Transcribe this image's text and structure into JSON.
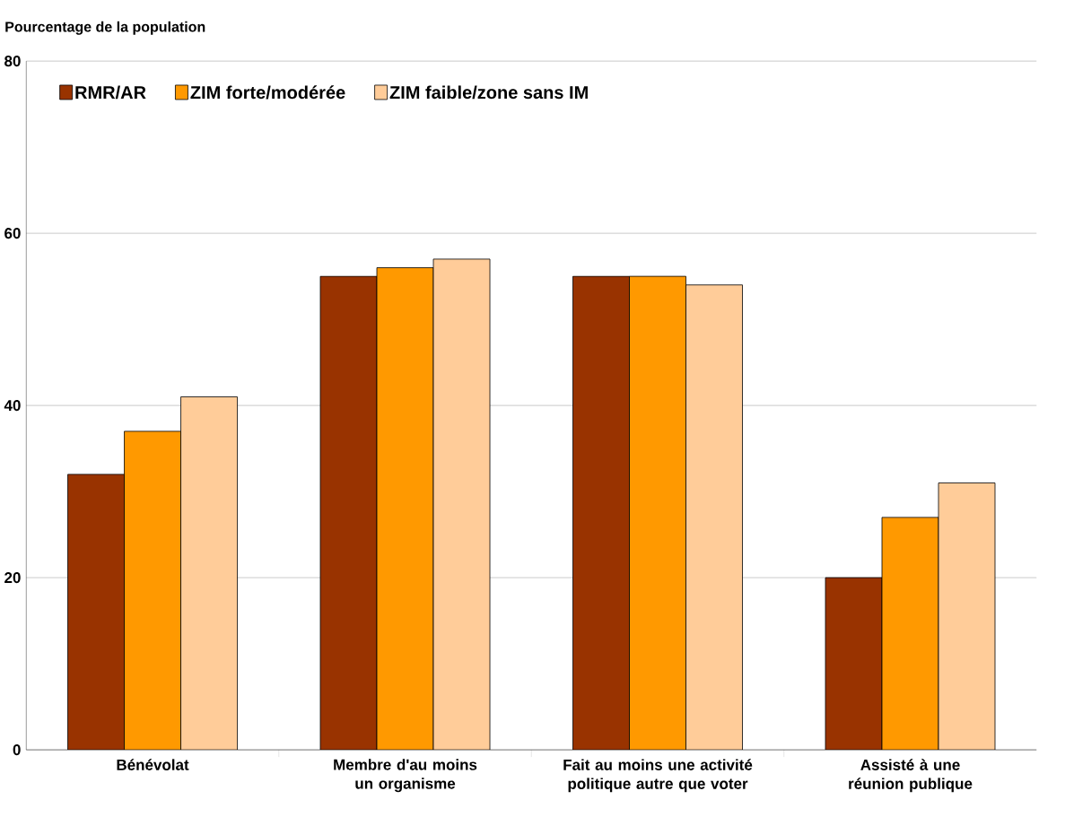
{
  "chart_data": {
    "type": "bar",
    "ylabel": "Pourcentage de la population",
    "categories": [
      "Bénévolat",
      "Membre d'au moins un organisme",
      "Fait au moins une activité politique autre que voter",
      "Assisté à une réunion publique"
    ],
    "series": [
      {
        "name": "RMR/AR",
        "color": "#993300",
        "values": [
          32,
          55,
          55,
          20
        ]
      },
      {
        "name": "ZIM forte/modérée",
        "color": "#ff9900",
        "values": [
          37,
          56,
          55,
          27
        ]
      },
      {
        "name": "ZIM faible/zone sans IM",
        "color": "#ffcc99",
        "values": [
          41,
          57,
          54,
          31
        ]
      }
    ],
    "ylim": [
      0,
      80
    ],
    "yticks": [
      0,
      20,
      40,
      60,
      80
    ],
    "grid": "y",
    "legend": "top left"
  }
}
